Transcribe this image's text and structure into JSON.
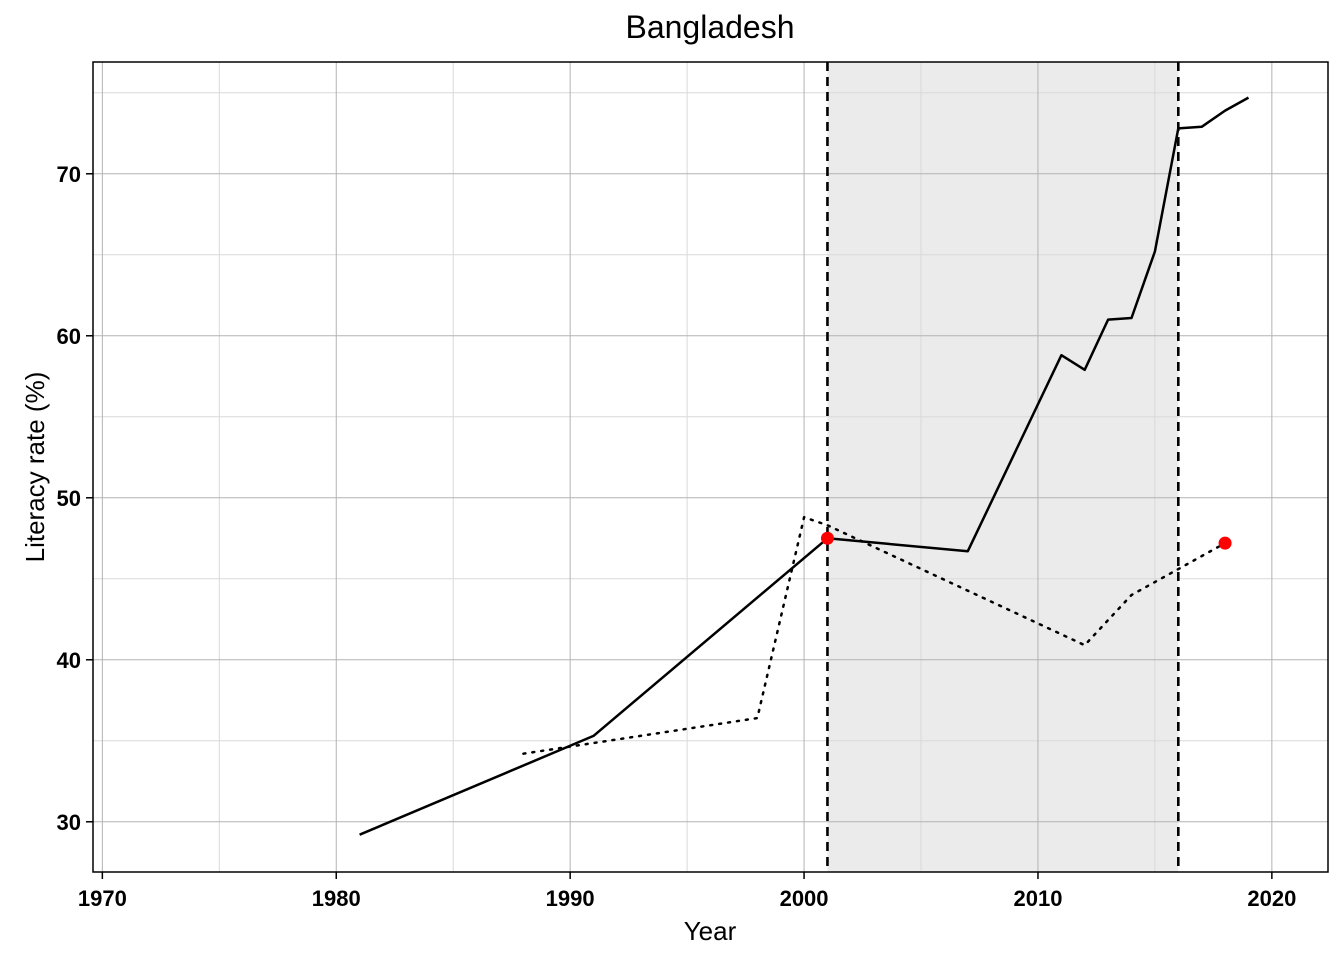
{
  "chart_data": {
    "type": "line",
    "title": "Bangladesh",
    "xlabel": "Year",
    "ylabel": "Literacy rate (%)",
    "xlim": [
      1969.6,
      2022.4
    ],
    "ylim": [
      26.9,
      76.9
    ],
    "x_ticks": [
      1970,
      1980,
      1990,
      2000,
      2010,
      2020
    ],
    "y_ticks": [
      30,
      40,
      50,
      60,
      70
    ],
    "grid": true,
    "legend": "none",
    "shaded_region": {
      "x_start": 2001,
      "x_end": 2016,
      "color": "#ebebeb"
    },
    "vlines": [
      {
        "x": 2001,
        "style": "dashed"
      },
      {
        "x": 2016,
        "style": "dashed"
      }
    ],
    "series": [
      {
        "style": "solid",
        "color": "#000000",
        "points": [
          [
            1981,
            29.2
          ],
          [
            1991,
            35.3
          ],
          [
            2001,
            47.5
          ],
          [
            2007,
            46.7
          ],
          [
            2011,
            58.8
          ],
          [
            2012,
            57.9
          ],
          [
            2013,
            61.0
          ],
          [
            2014,
            61.1
          ],
          [
            2015,
            65.2
          ],
          [
            2016,
            72.8
          ],
          [
            2017,
            72.9
          ],
          [
            2018,
            73.9
          ],
          [
            2019,
            74.7
          ]
        ]
      },
      {
        "style": "dotted",
        "color": "#000000",
        "points": [
          [
            1988,
            34.2
          ],
          [
            1998,
            36.4
          ],
          [
            2000,
            48.8
          ],
          [
            2001,
            48.3
          ],
          [
            2012,
            40.9
          ],
          [
            2014,
            44.0
          ],
          [
            2016,
            45.6
          ],
          [
            2018,
            47.2
          ]
        ]
      }
    ],
    "highlight_points": [
      {
        "x": 2001,
        "y": 47.5,
        "color": "#ff0000"
      },
      {
        "x": 2018,
        "y": 47.2,
        "color": "#ff0000"
      }
    ]
  }
}
